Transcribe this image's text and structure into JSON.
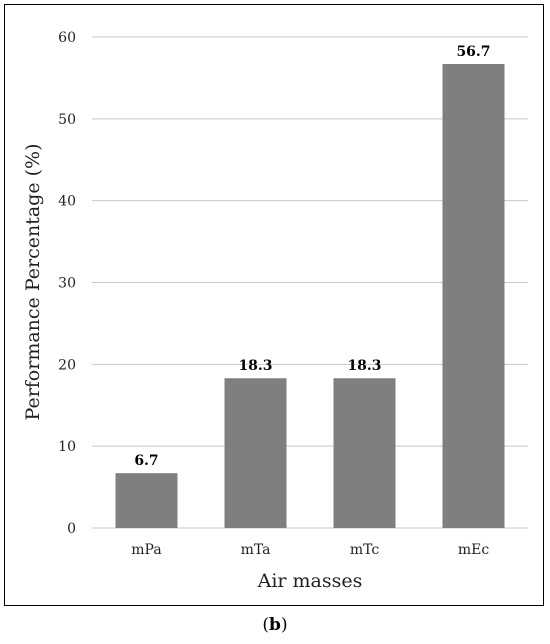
{
  "caption": {
    "open": "(",
    "letter": "b",
    "close": ")"
  },
  "chart_data": {
    "type": "bar",
    "categories": [
      "mPa",
      "mTa",
      "mTc",
      "mEc"
    ],
    "values": [
      6.7,
      18.3,
      18.3,
      56.7
    ],
    "value_labels": [
      "6.7",
      "18.3",
      "18.3",
      "56.7"
    ],
    "title": "",
    "xlabel": "Air masses",
    "ylabel": "Performance Percentage (%)",
    "ylim": [
      0,
      60
    ],
    "yticks": [
      0,
      10,
      20,
      30,
      40,
      50,
      60
    ],
    "grid": true,
    "legend": "none",
    "bar_color": "#7f7f7f",
    "grid_color": "#c8c8c8"
  }
}
